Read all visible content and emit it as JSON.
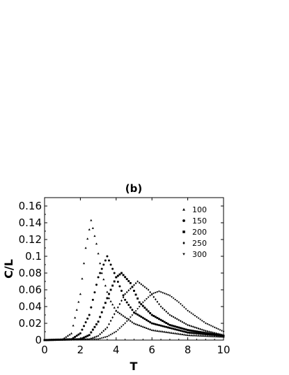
{
  "chart_data": {
    "type": "scatter",
    "title": "(b)",
    "xlabel": "T",
    "ylabel": "C/L",
    "xlim": [
      0,
      10
    ],
    "ylim": [
      0,
      0.17
    ],
    "xticks": [
      "0",
      "2",
      "4",
      "6",
      "8",
      "10"
    ],
    "yticks": [
      "0",
      "0.02",
      "0.04",
      "0.06",
      "0.08",
      "0.1",
      "0.12",
      "0.14",
      "0.16"
    ],
    "grid": false,
    "legend_position": "top-right",
    "series": [
      {
        "name": "100",
        "marker": "triangle-up",
        "peak_x": 2.6,
        "peak_y": 0.143,
        "x_step": 0.1,
        "points": [
          [
            0,
            0
          ],
          [
            1,
            0.001
          ],
          [
            1.5,
            0.008
          ],
          [
            2,
            0.055
          ],
          [
            2.3,
            0.11
          ],
          [
            2.6,
            0.143
          ],
          [
            2.9,
            0.115
          ],
          [
            3.2,
            0.08
          ],
          [
            3.6,
            0.05
          ],
          [
            4,
            0.035
          ],
          [
            5,
            0.02
          ],
          [
            6,
            0.012
          ],
          [
            8,
            0.006
          ],
          [
            10,
            0.004
          ]
        ]
      },
      {
        "name": "150",
        "marker": "circle",
        "peak_x": 3.5,
        "peak_y": 0.1,
        "x_step": 0.1,
        "points": [
          [
            0,
            0
          ],
          [
            1.5,
            0.001
          ],
          [
            2,
            0.008
          ],
          [
            2.5,
            0.03
          ],
          [
            3,
            0.075
          ],
          [
            3.5,
            0.1
          ],
          [
            4,
            0.075
          ],
          [
            4.5,
            0.048
          ],
          [
            5,
            0.033
          ],
          [
            6,
            0.02
          ],
          [
            8,
            0.009
          ],
          [
            10,
            0.005
          ]
        ]
      },
      {
        "name": "200",
        "marker": "square",
        "peak_x": 4.3,
        "peak_y": 0.08,
        "x_step": 0.1,
        "points": [
          [
            0,
            0
          ],
          [
            2,
            0.001
          ],
          [
            2.5,
            0.006
          ],
          [
            3,
            0.022
          ],
          [
            3.5,
            0.05
          ],
          [
            4,
            0.075
          ],
          [
            4.3,
            0.08
          ],
          [
            4.8,
            0.068
          ],
          [
            5.3,
            0.045
          ],
          [
            6,
            0.03
          ],
          [
            7,
            0.018
          ],
          [
            8,
            0.012
          ],
          [
            10,
            0.005
          ]
        ]
      },
      {
        "name": "250",
        "marker": "diamond",
        "peak_x": 5.2,
        "peak_y": 0.07,
        "x_step": 0.1,
        "points": [
          [
            0,
            0
          ],
          [
            2.5,
            0.001
          ],
          [
            3,
            0.005
          ],
          [
            3.5,
            0.015
          ],
          [
            4,
            0.035
          ],
          [
            4.5,
            0.055
          ],
          [
            5.2,
            0.07
          ],
          [
            5.8,
            0.06
          ],
          [
            6.5,
            0.04
          ],
          [
            7,
            0.03
          ],
          [
            8,
            0.018
          ],
          [
            9,
            0.011
          ],
          [
            10,
            0.006
          ]
        ]
      },
      {
        "name": "300",
        "marker": "triangle-down",
        "peak_x": 6.4,
        "peak_y": 0.058,
        "x_step": 0.1,
        "points": [
          [
            0,
            0
          ],
          [
            3,
            0.001
          ],
          [
            3.5,
            0.004
          ],
          [
            4,
            0.01
          ],
          [
            4.5,
            0.02
          ],
          [
            5,
            0.032
          ],
          [
            5.5,
            0.045
          ],
          [
            6,
            0.055
          ],
          [
            6.4,
            0.058
          ],
          [
            7,
            0.053
          ],
          [
            7.5,
            0.045
          ],
          [
            8,
            0.035
          ],
          [
            9,
            0.02
          ],
          [
            10,
            0.01
          ]
        ]
      }
    ]
  }
}
